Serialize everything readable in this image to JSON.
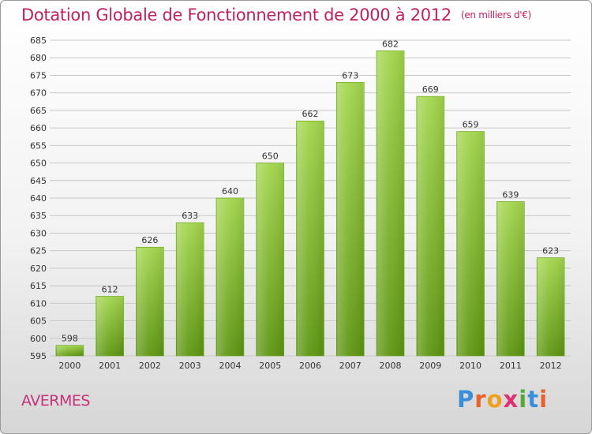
{
  "header": {
    "title": "Dotation Globale de Fonctionnement de 2000 à 2012",
    "unit": "(en milliers d'€)"
  },
  "commune": "AVERMES",
  "logo": {
    "letters": [
      "P",
      "r",
      "o",
      "x",
      "i",
      "t",
      "i"
    ],
    "colors": [
      "#3b8ed8",
      "#e8632a",
      "#f0a020",
      "#e03070",
      "#55a83a",
      "#3b8ed8",
      "#e8632a"
    ]
  },
  "colors": {
    "bar_top": "#a4d64e",
    "bar_bottom": "#5e9612",
    "grid": "#c8c8c8",
    "title": "#c02060"
  },
  "chart_data": {
    "type": "bar",
    "categories": [
      "2000",
      "2001",
      "2002",
      "2003",
      "2004",
      "2005",
      "2006",
      "2007",
      "2008",
      "2009",
      "2010",
      "2011",
      "2012"
    ],
    "values": [
      598,
      612,
      626,
      633,
      640,
      650,
      662,
      673,
      682,
      669,
      659,
      639,
      623
    ],
    "ylim": [
      595,
      685
    ],
    "yticks": [
      595,
      600,
      605,
      610,
      615,
      620,
      625,
      630,
      635,
      640,
      645,
      650,
      655,
      660,
      665,
      670,
      675,
      680,
      685
    ],
    "grid": true,
    "title": "Dotation Globale de Fonctionnement de 2000 à 2012",
    "xlabel": "",
    "ylabel": ""
  }
}
